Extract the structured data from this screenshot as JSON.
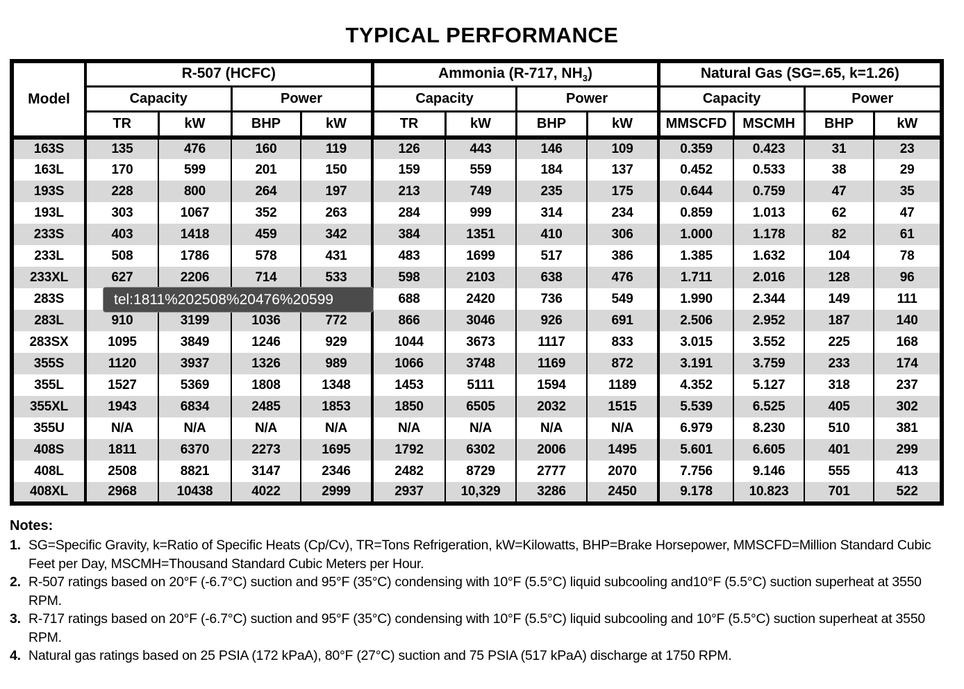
{
  "page": {
    "title": "TYPICAL PERFORMANCE"
  },
  "tooltip": {
    "text": "tel:1811%202508%20476%20599"
  },
  "table": {
    "model_header": "Model",
    "groups": [
      {
        "label_pre": "R-507 (HCFC)",
        "label_sub": "",
        "label_post": "",
        "subheads": [
          "Capacity",
          "Power"
        ],
        "columns": [
          "TR",
          "kW",
          "BHP",
          "kW"
        ]
      },
      {
        "label_pre": "Ammonia (R-717, NH",
        "label_sub": "3",
        "label_post": ")",
        "subheads": [
          "Capacity",
          "Power"
        ],
        "columns": [
          "TR",
          "kW",
          "BHP",
          "kW"
        ]
      },
      {
        "label_pre": "Natural Gas (SG=.65, k=1.26)",
        "label_sub": "",
        "label_post": "",
        "subheads": [
          "Capacity",
          "Power"
        ],
        "columns": [
          "MMSCFD",
          "MSCMH",
          "BHP",
          "kW"
        ]
      }
    ],
    "rows": [
      {
        "model": "163S",
        "values": [
          "135",
          "476",
          "160",
          "119",
          "126",
          "443",
          "146",
          "109",
          "0.359",
          "0.423",
          "31",
          "23"
        ]
      },
      {
        "model": "163L",
        "values": [
          "170",
          "599",
          "201",
          "150",
          "159",
          "559",
          "184",
          "137",
          "0.452",
          "0.533",
          "38",
          "29"
        ]
      },
      {
        "model": "193S",
        "values": [
          "228",
          "800",
          "264",
          "197",
          "213",
          "749",
          "235",
          "175",
          "0.644",
          "0.759",
          "47",
          "35"
        ]
      },
      {
        "model": "193L",
        "values": [
          "303",
          "1067",
          "352",
          "263",
          "284",
          "999",
          "314",
          "234",
          "0.859",
          "1.013",
          "62",
          "47"
        ]
      },
      {
        "model": "233S",
        "values": [
          "403",
          "1418",
          "459",
          "342",
          "384",
          "1351",
          "410",
          "306",
          "1.000",
          "1.178",
          "82",
          "61"
        ]
      },
      {
        "model": "233L",
        "values": [
          "508",
          "1786",
          "578",
          "431",
          "483",
          "1699",
          "517",
          "386",
          "1.385",
          "1.632",
          "104",
          "78"
        ]
      },
      {
        "model": "233XL",
        "values": [
          "627",
          "2206",
          "714",
          "533",
          "598",
          "2103",
          "638",
          "476",
          "1.711",
          "2.016",
          "128",
          "96"
        ]
      },
      {
        "model": "283S",
        "values": [
          "",
          "",
          "",
          "",
          "688",
          "2420",
          "736",
          "549",
          "1.990",
          "2.344",
          "149",
          "111"
        ]
      },
      {
        "model": "283L",
        "values": [
          "910",
          "3199",
          "1036",
          "772",
          "866",
          "3046",
          "926",
          "691",
          "2.506",
          "2.952",
          "187",
          "140"
        ]
      },
      {
        "model": "283SX",
        "values": [
          "1095",
          "3849",
          "1246",
          "929",
          "1044",
          "3673",
          "1117",
          "833",
          "3.015",
          "3.552",
          "225",
          "168"
        ]
      },
      {
        "model": "355S",
        "values": [
          "1120",
          "3937",
          "1326",
          "989",
          "1066",
          "3748",
          "1169",
          "872",
          "3.191",
          "3.759",
          "233",
          "174"
        ]
      },
      {
        "model": "355L",
        "values": [
          "1527",
          "5369",
          "1808",
          "1348",
          "1453",
          "5111",
          "1594",
          "1189",
          "4.352",
          "5.127",
          "318",
          "237"
        ]
      },
      {
        "model": "355XL",
        "values": [
          "1943",
          "6834",
          "2485",
          "1853",
          "1850",
          "6505",
          "2032",
          "1515",
          "5.539",
          "6.525",
          "405",
          "302"
        ]
      },
      {
        "model": "355U",
        "values": [
          "N/A",
          "N/A",
          "N/A",
          "N/A",
          "N/A",
          "N/A",
          "N/A",
          "N/A",
          "6.979",
          "8.230",
          "510",
          "381"
        ]
      },
      {
        "model": "408S",
        "values": [
          "1811",
          "6370",
          "2273",
          "1695",
          "1792",
          "6302",
          "2006",
          "1495",
          "5.601",
          "6.605",
          "401",
          "299"
        ]
      },
      {
        "model": "408L",
        "values": [
          "2508",
          "8821",
          "3147",
          "2346",
          "2482",
          "8729",
          "2777",
          "2070",
          "7.756",
          "9.146",
          "555",
          "413"
        ]
      },
      {
        "model": "408XL",
        "values": [
          "2968",
          "10438",
          "4022",
          "2999",
          "2937",
          "10,329",
          "3286",
          "2450",
          "9.178",
          "10.823",
          "701",
          "522"
        ]
      }
    ]
  },
  "notes": {
    "heading": "Notes:",
    "items": [
      {
        "num": "1.",
        "text": "SG=Specific Gravity, k=Ratio of Specific Heats (Cp/Cv), TR=Tons Refrigeration, kW=Kilowatts, BHP=Brake Horsepower, MMSCFD=Million Standard Cubic Feet per Day, MSCMH=Thousand Standard Cubic Meters per Hour."
      },
      {
        "num": "2.",
        "text": "R-507 ratings based on 20°F (-6.7°C) suction and 95°F (35°C) condensing with 10°F (5.5°C) liquid subcooling and10°F (5.5°C) suction superheat at 3550 RPM."
      },
      {
        "num": "3.",
        "text": "R-717 ratings based on 20°F (-6.7°C) suction and 95°F (35°C) condensing with 10°F (5.5°C) liquid subcooling and 10°F (5.5°C) suction superheat at 3550 RPM."
      },
      {
        "num": "4.",
        "text": "Natural gas ratings based on 25 PSIA (172 kPaA), 80°F (27°C) suction and 75 PSIA (517 kPaA) discharge at 1750 RPM."
      }
    ]
  }
}
